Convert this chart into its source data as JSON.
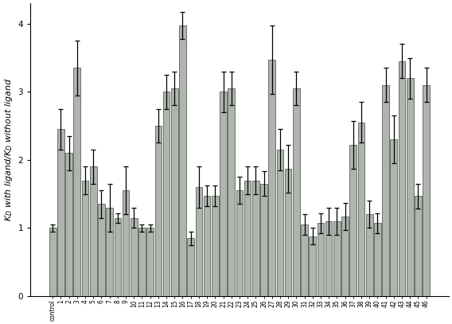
{
  "categories": [
    "control",
    "1",
    "2",
    "3",
    "4",
    "5",
    "6",
    "7",
    "8",
    "9",
    "10",
    "11",
    "12",
    "13",
    "14",
    "15",
    "16",
    "17",
    "18",
    "19",
    "20",
    "21",
    "22",
    "23",
    "24",
    "25",
    "26",
    "27",
    "28",
    "29",
    "30",
    "31",
    "32",
    "33",
    "34",
    "35",
    "36",
    "37",
    "38",
    "39",
    "40",
    "41",
    "42",
    "43",
    "44",
    "45",
    "46"
  ],
  "values": [
    1.0,
    2.45,
    2.1,
    3.35,
    1.7,
    1.9,
    1.35,
    1.3,
    1.15,
    1.55,
    1.15,
    1.0,
    1.0,
    2.5,
    3.0,
    3.05,
    3.97,
    0.85,
    1.6,
    1.47,
    1.47,
    3.0,
    3.05,
    1.55,
    1.7,
    1.7,
    1.65,
    3.47,
    2.15,
    1.87,
    3.05,
    1.05,
    0.88,
    1.07,
    1.1,
    1.1,
    1.17,
    2.22,
    2.55,
    1.2,
    1.07,
    3.1,
    2.3,
    3.45,
    3.2,
    1.47,
    3.1
  ],
  "errors": [
    0.05,
    0.3,
    0.25,
    0.4,
    0.2,
    0.25,
    0.2,
    0.35,
    0.07,
    0.35,
    0.15,
    0.05,
    0.05,
    0.25,
    0.25,
    0.25,
    0.2,
    0.1,
    0.3,
    0.15,
    0.15,
    0.3,
    0.25,
    0.2,
    0.2,
    0.2,
    0.18,
    0.5,
    0.3,
    0.35,
    0.25,
    0.15,
    0.12,
    0.15,
    0.2,
    0.2,
    0.2,
    0.35,
    0.3,
    0.2,
    0.15,
    0.25,
    0.35,
    0.25,
    0.3,
    0.18,
    0.25
  ],
  "bar_color": "#adb5ad",
  "error_color": "black",
  "ylabel": "$K_D$ with ligand/$K_D$ without ligand",
  "ylim": [
    0,
    4.3
  ],
  "yticks": [
    0,
    1,
    2,
    3,
    4
  ],
  "background_color": "#ffffff",
  "bar_edgecolor": "#444444",
  "bar_linewidth": 0.5,
  "ylabel_fontsize": 8,
  "tick_fontsize": 7.5,
  "xlabel_fontsize": 5.5
}
